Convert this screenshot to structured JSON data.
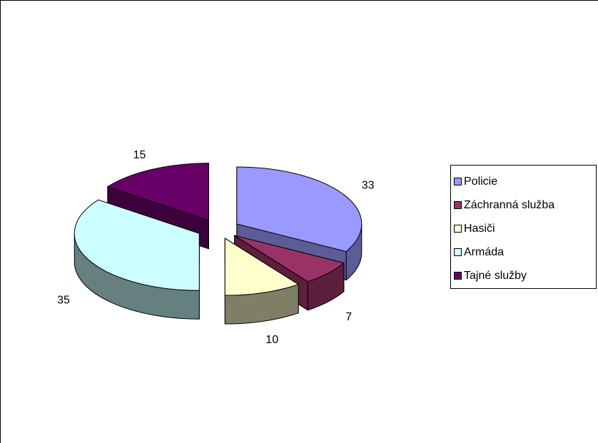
{
  "chart_data": {
    "type": "pie",
    "style": "3d-exploded",
    "series": [
      {
        "values": [
          33,
          7,
          10,
          35,
          15
        ],
        "labels": [
          "Policie",
          "Záchranná služba",
          "Hasiči",
          "Armáda",
          "Tajné služby"
        ]
      }
    ],
    "slices": [
      {
        "label": "Policie",
        "value": 33,
        "color": "#9999FF",
        "side_color": "#5C5C99"
      },
      {
        "label": "Záchranná služba",
        "value": 7,
        "color": "#993366",
        "side_color": "#5C1F3D"
      },
      {
        "label": "Hasiči",
        "value": 10,
        "color": "#FFFFCC",
        "side_color": "#7F7F66"
      },
      {
        "label": "Armáda",
        "value": 35,
        "color": "#CCFFFF",
        "side_color": "#668080"
      },
      {
        "label": "Tajné služby",
        "value": 15,
        "color": "#660066",
        "side_color": "#3D003D"
      }
    ],
    "legend_position": "right",
    "show_data_labels": true
  }
}
